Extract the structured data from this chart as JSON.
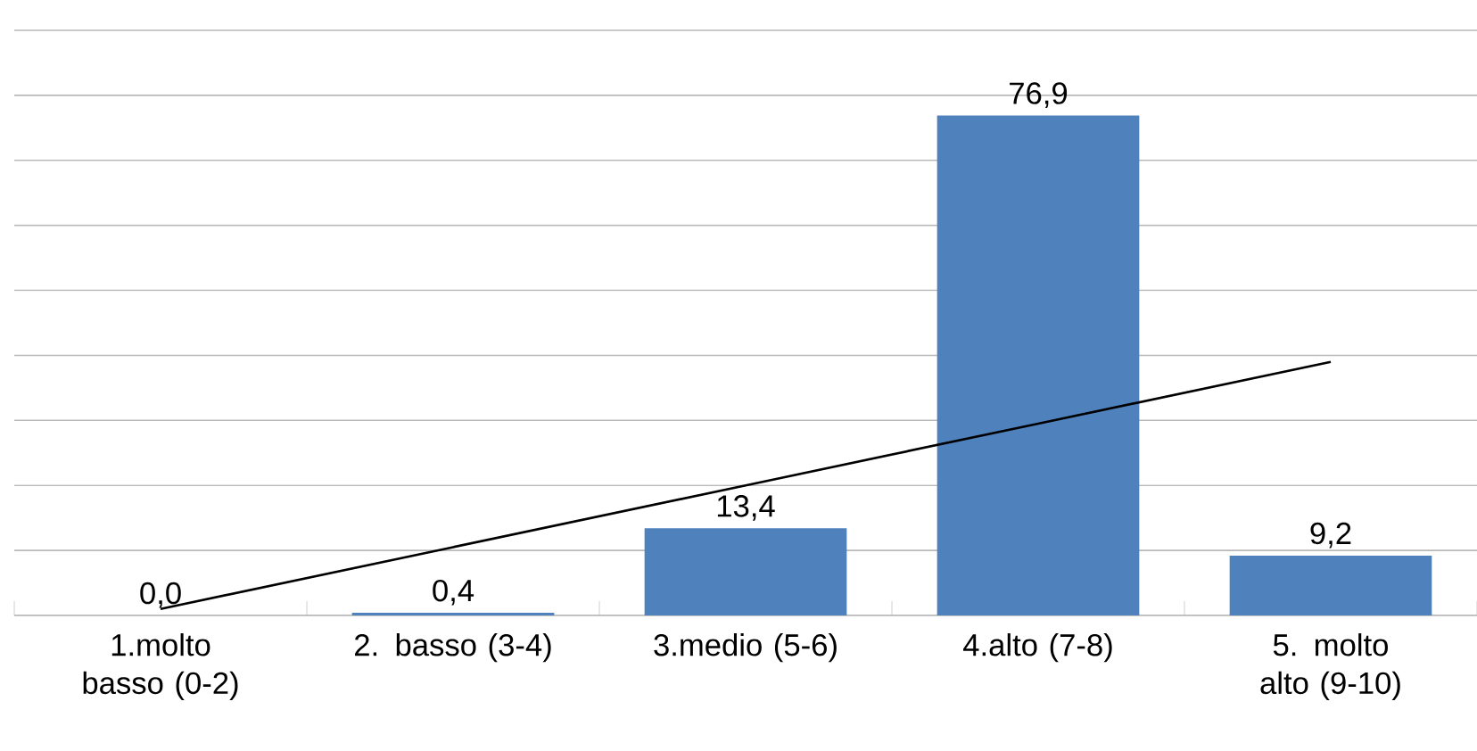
{
  "chart_data": {
    "type": "bar",
    "categories": [
      "1.molto basso (0-2)",
      "2. basso (3-4)",
      "3.medio (5-6)",
      "4.alto (7-8)",
      "5. molto alto (9-10)"
    ],
    "series": [
      {
        "color": "#4f81bd",
        "values": [
          0.0,
          0.4,
          13.4,
          76.9,
          9.2
        ],
        "value_labels": [
          "0,0",
          "0,4",
          "13,4",
          "76,9",
          "9,2"
        ]
      },
      {
        "type": "line",
        "color": "#000000",
        "values": [
          1.0,
          10.5,
          20.0,
          29.5,
          39.0
        ]
      }
    ],
    "ylim": [
      0,
      90
    ],
    "yticks": [
      {
        "value": 0,
        "label": null
      },
      {
        "value": 10,
        "label": null
      },
      {
        "value": 20,
        "label": null
      },
      {
        "value": 30,
        "label": null
      },
      {
        "value": 40,
        "label": null
      },
      {
        "value": 50,
        "label": null
      },
      {
        "value": 60,
        "label": null
      },
      {
        "value": 70,
        "label": null
      },
      {
        "value": 80,
        "label": null
      },
      {
        "value": 90,
        "label": null
      }
    ],
    "grid": "y",
    "tick_labels": "x",
    "marker": "none",
    "line_style": "solid"
  }
}
